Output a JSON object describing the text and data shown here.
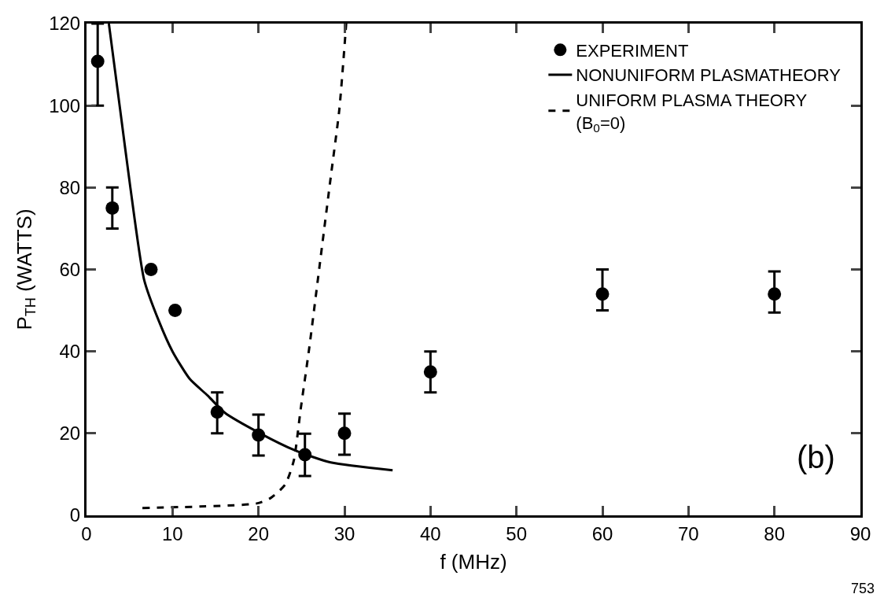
{
  "chart_data": {
    "type": "scatter",
    "xlabel": "f (MHz)",
    "ylabel": "P$_{TH}$ (WATTS)",
    "xlim": [
      0,
      90
    ],
    "ylim": [
      0,
      120
    ],
    "xticks": [
      0,
      10,
      20,
      30,
      40,
      50,
      60,
      70,
      80,
      90
    ],
    "yticks": [
      0,
      20,
      40,
      60,
      80,
      100,
      120
    ],
    "legend": "top right",
    "series": [
      {
        "name": "EXPERIMENT",
        "marker": "circle",
        "color": "#000000",
        "x": [
          1.3,
          3,
          7.5,
          10.3,
          15.2,
          20,
          25.4,
          30,
          40,
          60,
          80
        ],
        "values": [
          110.8,
          75,
          60,
          50,
          25.2,
          19.6,
          14.8,
          20,
          35,
          54,
          54
        ],
        "errors": [
          [
            100,
            120
          ],
          [
            70,
            80
          ],
          null,
          null,
          [
            20,
            30
          ],
          [
            14.6,
            24.6
          ],
          [
            9.6,
            19.9
          ],
          [
            14.8,
            24.8
          ],
          [
            30,
            40
          ],
          [
            50,
            60
          ],
          [
            49.5,
            59.5
          ]
        ]
      },
      {
        "name": "NONUNIFORM PLASMATHEORY",
        "type": "line",
        "line_style": "solid",
        "color": "#000000",
        "x": [
          2.6,
          3.9,
          5.1,
          6.7,
          8.4,
          10,
          12,
          14.1,
          16.1,
          20.2,
          24.3,
          28.4,
          35.6
        ],
        "values": [
          120,
          99.2,
          80,
          57.5,
          47.5,
          40,
          33.3,
          29.2,
          25,
          20,
          15.8,
          12.9,
          11
        ]
      },
      {
        "name": "UNIFORM PLASMA THEORY\n(B$_{0}$=0)",
        "type": "line",
        "line_style": "dashed",
        "color": "#000000",
        "x": [
          6.5,
          19.8,
          21.4,
          23.1,
          24.1,
          24.9,
          25.9,
          27.1,
          28.4,
          29.4,
          30.2
        ],
        "values": [
          1.8,
          2.9,
          4.2,
          7.5,
          13.3,
          25.8,
          40.8,
          60.8,
          82.5,
          99,
          120
        ]
      }
    ],
    "annotations": [
      "(b)",
      "753"
    ]
  }
}
